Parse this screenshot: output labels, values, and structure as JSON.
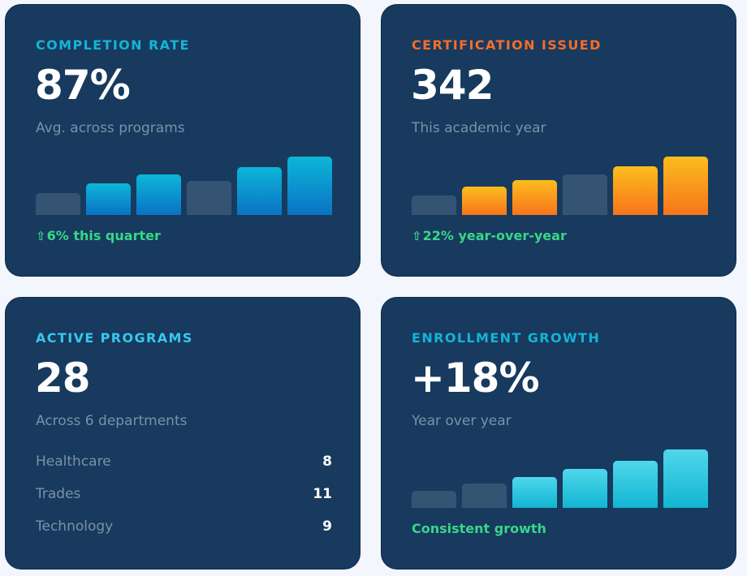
{
  "colors": {
    "page_bg": "#f3f6fc",
    "card_bg": "#173a5e",
    "label_cyan": "#14b4d6",
    "label_orange": "#f46d2a",
    "label_lightblue": "#38c7ee",
    "positive_green": "#39d68a",
    "muted_text": "#7b91aa"
  },
  "completion": {
    "label": "COMPLETION RATE",
    "value": "87%",
    "subtitle": "Avg. across programs",
    "trend_icon": "up-arrow-icon",
    "trend_arrow": "⇧",
    "trend": "6% this quarter",
    "bars": [
      {
        "level": 0.37,
        "style": "muted"
      },
      {
        "level": 0.54,
        "style": "blue"
      },
      {
        "level": 0.69,
        "style": "blue"
      },
      {
        "level": 0.59,
        "style": "muted"
      },
      {
        "level": 0.82,
        "style": "blue"
      },
      {
        "level": 1.0,
        "style": "blue"
      }
    ]
  },
  "certification": {
    "label": "CERTIFICATION ISSUED",
    "value": "342",
    "subtitle": "This academic year",
    "trend_icon": "up-arrow-icon",
    "trend_arrow": "⇧",
    "trend": "22% year-over-year",
    "bars": [
      {
        "level": 0.34,
        "style": "muted"
      },
      {
        "level": 0.49,
        "style": "orange"
      },
      {
        "level": 0.6,
        "style": "orange"
      },
      {
        "level": 0.69,
        "style": "muted"
      },
      {
        "level": 0.84,
        "style": "orange"
      },
      {
        "level": 1.0,
        "style": "orange"
      }
    ]
  },
  "active_programs": {
    "label": "ACTIVE PROGRAMS",
    "value": "28",
    "subtitle": "Across 6 departments",
    "programs": [
      {
        "name": "Healthcare",
        "count": "8"
      },
      {
        "name": "Trades",
        "count": "11"
      },
      {
        "name": "Technology",
        "count": "9"
      }
    ]
  },
  "enrollment": {
    "label": "ENROLLMENT GROWTH",
    "value": "+18%",
    "subtitle": "Year over year",
    "trend": "Consistent growth",
    "bars": [
      {
        "level": 0.29,
        "style": "muted"
      },
      {
        "level": 0.41,
        "style": "muted"
      },
      {
        "level": 0.53,
        "style": "cyan"
      },
      {
        "level": 0.67,
        "style": "cyan"
      },
      {
        "level": 0.81,
        "style": "cyan"
      },
      {
        "level": 1.0,
        "style": "cyan"
      }
    ]
  }
}
